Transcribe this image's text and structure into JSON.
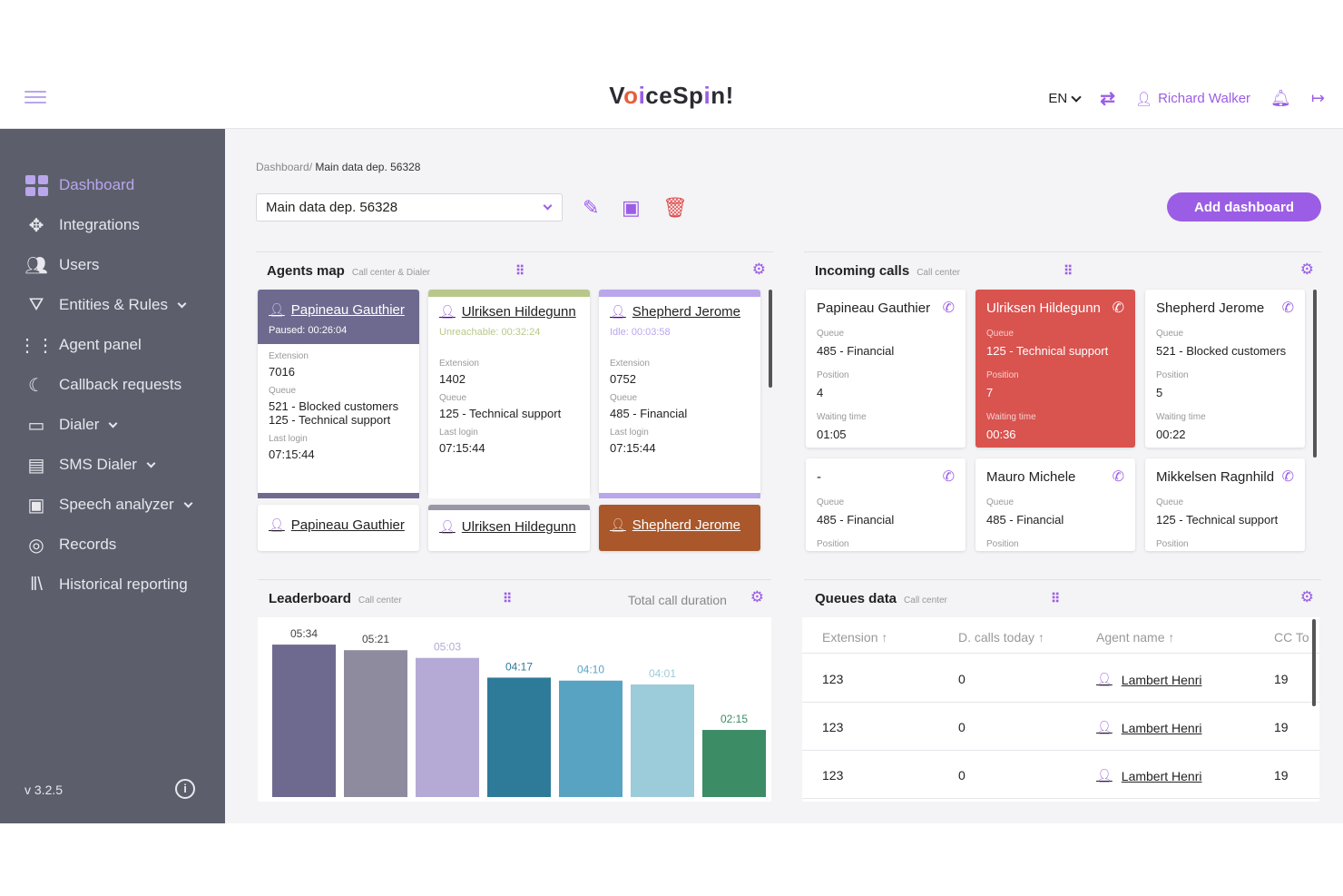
{
  "header": {
    "logo": "VoiceSpin!",
    "lang": "EN",
    "user": "Richard Walker"
  },
  "sidebar": {
    "items": [
      {
        "label": "Dashboard",
        "icon": "dashboard-icon",
        "active": true
      },
      {
        "label": "Integrations",
        "icon": "integrations-icon"
      },
      {
        "label": "Users",
        "icon": "users-icon"
      },
      {
        "label": "Entities & Rules",
        "icon": "entities-icon",
        "expandable": true
      },
      {
        "label": "Agent panel",
        "icon": "agent-panel-icon"
      },
      {
        "label": "Callback requests",
        "icon": "callback-icon"
      },
      {
        "label": "Dialer",
        "icon": "dialer-icon",
        "expandable": true
      },
      {
        "label": "SMS Dialer",
        "icon": "sms-icon",
        "expandable": true
      },
      {
        "label": "Speech analyzer",
        "icon": "speech-icon",
        "expandable": true
      },
      {
        "label": "Records",
        "icon": "records-icon"
      },
      {
        "label": "Historical reporting",
        "icon": "reporting-icon"
      }
    ],
    "version": "v 3.2.5"
  },
  "main": {
    "breadcrumb_root": "Dashboard/",
    "breadcrumb_current": "Main data dep. 56328",
    "dashboard_select": "Main data dep. 56328",
    "add_dashboard": "Add dashboard"
  },
  "agents_map": {
    "title": "Agents map",
    "subtitle": "Call center & Dialer",
    "labels": {
      "extension": "Extension",
      "queue": "Queue",
      "last_login": "Last login"
    },
    "cards": [
      {
        "name": "Papineau Gauthier",
        "status": "Paused: 00:26:04",
        "extension": "7016",
        "queue1": "521 - Blocked customers",
        "queue2": "125 - Technical support",
        "last_login": "07:15:44",
        "color": "#6e6a8f"
      },
      {
        "name": "Ulriksen Hildegunn",
        "status": "Unreachable: 00:32:24",
        "extension": "1402",
        "queue1": "125 - Technical support",
        "queue2": "",
        "last_login": "07:15:44",
        "color": "#b8c88a"
      },
      {
        "name": "Shepherd Jerome",
        "status": "Idle: 00:03:58",
        "extension": "0752",
        "queue1": "485 - Financial",
        "queue2": "",
        "last_login": "07:15:44",
        "color": "#b9a6ec"
      }
    ],
    "row2": [
      {
        "name": "Papineau Gauthier"
      },
      {
        "name": "Ulriksen Hildegunn"
      },
      {
        "name": "Shepherd Jerome"
      }
    ]
  },
  "incoming_calls": {
    "title": "Incoming calls",
    "subtitle": "Call center",
    "labels": {
      "queue": "Queue",
      "position": "Position",
      "waiting": "Waiting time"
    },
    "cards": [
      {
        "name": "Papineau Gauthier",
        "queue": "485 - Financial",
        "position": "4",
        "waiting": "01:05",
        "highlight": false
      },
      {
        "name": "Ulriksen Hildegunn",
        "queue": "125 - Technical support",
        "position": "7",
        "waiting": "00:36",
        "highlight": true
      },
      {
        "name": "Shepherd Jerome",
        "queue": "521 - Blocked customers",
        "position": "5",
        "waiting": "00:22",
        "highlight": false
      },
      {
        "name": "-",
        "queue": "485 - Financial"
      },
      {
        "name": "Mauro Michele",
        "queue": "485 - Financial"
      },
      {
        "name": "Mikkelsen Ragnhild",
        "queue": "125 - Technical support"
      }
    ]
  },
  "leaderboard": {
    "title": "Leaderboard",
    "subtitle": "Call center",
    "metric": "Total call duration"
  },
  "chart_data": {
    "type": "bar",
    "categories": [
      "",
      "",
      "",
      "",
      "",
      "",
      ""
    ],
    "values": [
      334,
      321,
      303,
      257,
      250,
      241,
      135
    ],
    "data_labels": [
      "05:34",
      "05:21",
      "05:03",
      "04:17",
      "04:10",
      "04:01",
      "02:15"
    ],
    "colors": [
      "#6e6a8f",
      "#8e8b9f",
      "#b5aad6",
      "#2e7a99",
      "#58a3c2",
      "#9ccbd9",
      "#3c8c66"
    ],
    "label_colors": [
      "#444",
      "#444",
      "#b5aad6",
      "#2e7a99",
      "#58a3c2",
      "#9ccbd9",
      "#3c8c66"
    ],
    "ylim": [
      0,
      360
    ]
  },
  "queues_data": {
    "title": "Queues data",
    "subtitle": "Call center",
    "columns": [
      "Extension",
      "D. calls today",
      "Agent name",
      "CC To"
    ],
    "rows": [
      {
        "extension": "123",
        "calls": "0",
        "agent": "Lambert Henri",
        "cc": "19"
      },
      {
        "extension": "123",
        "calls": "0",
        "agent": "Lambert Henri",
        "cc": "19"
      },
      {
        "extension": "123",
        "calls": "0",
        "agent": "Lambert Henri",
        "cc": "19"
      }
    ]
  }
}
